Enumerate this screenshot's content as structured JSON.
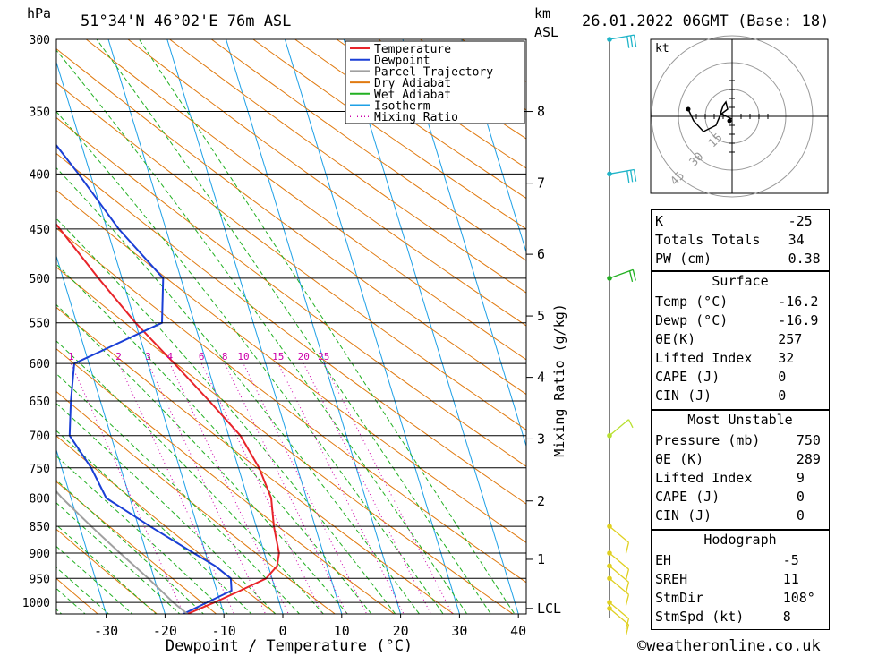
{
  "header": {
    "location": "51°34'N 46°02'E 76m ASL",
    "datetime": "26.01.2022 06GMT (Base: 18)",
    "pressure_unit": "hPa",
    "height_unit_line1": "km",
    "height_unit_line2": "ASL"
  },
  "legend": [
    {
      "label": "Temperature",
      "color": "#e8242a"
    },
    {
      "label": "Dewpoint",
      "color": "#1a3fd6"
    },
    {
      "label": "Parcel Trajectory",
      "color": "#a0a0a0"
    },
    {
      "label": "Dry Adiabat",
      "color": "#e07a10"
    },
    {
      "label": "Wet Adiabat",
      "color": "#22b022"
    },
    {
      "label": "Isotherm",
      "color": "#1ea0e6"
    },
    {
      "label": "Mixing Ratio",
      "color": "#cc00aa"
    }
  ],
  "chart_data": {
    "type": "line",
    "title": "",
    "xlabel": "Dewpoint / Temperature (°C)",
    "ylabel": "hPa",
    "y2label": "Mixing Ratio (g/kg)",
    "xlim": [
      -40,
      40
    ],
    "ylim": [
      1025,
      300
    ],
    "pressure_ticks": [
      300,
      350,
      400,
      450,
      500,
      550,
      600,
      650,
      700,
      750,
      800,
      850,
      900,
      950,
      1000
    ],
    "temperature_ticks": [
      -30,
      -20,
      -10,
      0,
      10,
      20,
      30,
      40
    ],
    "height_ticks": [
      {
        "label": "8",
        "p": 350
      },
      {
        "label": "7",
        "p": 408
      },
      {
        "label": "6",
        "p": 475
      },
      {
        "label": "5",
        "p": 542
      },
      {
        "label": "4",
        "p": 618
      },
      {
        "label": "3",
        "p": 705
      },
      {
        "label": "2",
        "p": 805
      },
      {
        "label": "1",
        "p": 912
      },
      {
        "label": "LCL",
        "p": 1013
      }
    ],
    "mixing_ratio_labels": [
      "1",
      "2",
      "3",
      "4",
      "6",
      "8",
      "10",
      "15",
      "20",
      "25"
    ],
    "series": [
      {
        "name": "Temperature",
        "points": [
          [
            1025,
            -16.2
          ],
          [
            1000,
            -11
          ],
          [
            975,
            -6
          ],
          [
            950,
            -1
          ],
          [
            925,
            1.5
          ],
          [
            900,
            2.5
          ],
          [
            850,
            3
          ],
          [
            800,
            4
          ],
          [
            750,
            3.5
          ],
          [
            700,
            2
          ],
          [
            650,
            -1.5
          ],
          [
            600,
            -5.5
          ],
          [
            550,
            -10
          ],
          [
            500,
            -14
          ],
          [
            450,
            -18
          ],
          [
            400,
            -22.5
          ],
          [
            350,
            -28
          ],
          [
            300,
            -33.5
          ]
        ]
      },
      {
        "name": "Dewpoint",
        "points": [
          [
            1025,
            -16.9
          ],
          [
            975,
            -7.5
          ],
          [
            950,
            -7
          ],
          [
            925,
            -9
          ],
          [
            900,
            -12
          ],
          [
            850,
            -18
          ],
          [
            800,
            -24
          ],
          [
            750,
            -25
          ],
          [
            700,
            -27
          ],
          [
            650,
            -25
          ],
          [
            600,
            -22.5
          ],
          [
            550,
            -5.5
          ],
          [
            500,
            -3
          ],
          [
            450,
            -8
          ],
          [
            400,
            -12
          ],
          [
            350,
            -17
          ],
          [
            300,
            -27
          ]
        ]
      },
      {
        "name": "Parcel Trajectory",
        "points": [
          [
            1025,
            -16.2
          ],
          [
            1000,
            -18
          ],
          [
            950,
            -21
          ],
          [
            900,
            -24.5
          ],
          [
            850,
            -28
          ],
          [
            800,
            -31.5
          ],
          [
            750,
            -34.5
          ],
          [
            700,
            -37.5
          ],
          [
            650,
            -40.5
          ],
          [
            600,
            -43.5
          ],
          [
            550,
            -46
          ],
          [
            500,
            -48
          ],
          [
            475,
            -49
          ]
        ]
      }
    ]
  },
  "wind_barbs": {
    "levels_hpa": [
      300,
      400,
      500,
      700,
      850,
      900,
      925,
      950,
      1000,
      1013
    ]
  },
  "hodograph": {
    "unit": "kt",
    "ring_labels": [
      "15",
      "30",
      "45"
    ]
  },
  "indices": {
    "top": [
      {
        "label": "K",
        "value": "-25"
      },
      {
        "label": "Totals Totals",
        "value": "34"
      },
      {
        "label": "PW (cm)",
        "value": "0.38"
      }
    ],
    "surface": {
      "title": "Surface",
      "rows": [
        {
          "label": "Temp (°C)",
          "value": "-16.2"
        },
        {
          "label": "Dewp (°C)",
          "value": "-16.9"
        },
        {
          "label": "θE(K)",
          "value": "257"
        },
        {
          "label": "Lifted Index",
          "value": "32"
        },
        {
          "label": "CAPE (J)",
          "value": "0"
        },
        {
          "label": "CIN (J)",
          "value": "0"
        }
      ]
    },
    "most_unstable": {
      "title": "Most Unstable",
      "rows": [
        {
          "label": "Pressure (mb)",
          "value": "750"
        },
        {
          "label": "θE (K)",
          "value": "289"
        },
        {
          "label": "Lifted Index",
          "value": "9"
        },
        {
          "label": "CAPE (J)",
          "value": "0"
        },
        {
          "label": "CIN (J)",
          "value": "0"
        }
      ]
    },
    "hodograph_box": {
      "title": "Hodograph",
      "rows": [
        {
          "label": "EH",
          "value": "-5"
        },
        {
          "label": "SREH",
          "value": "11"
        },
        {
          "label": "StmDir",
          "value": "108°"
        },
        {
          "label": "StmSpd (kt)",
          "value": "8"
        }
      ]
    }
  },
  "footer": {
    "copyright": "©weatheronline.co.uk"
  }
}
